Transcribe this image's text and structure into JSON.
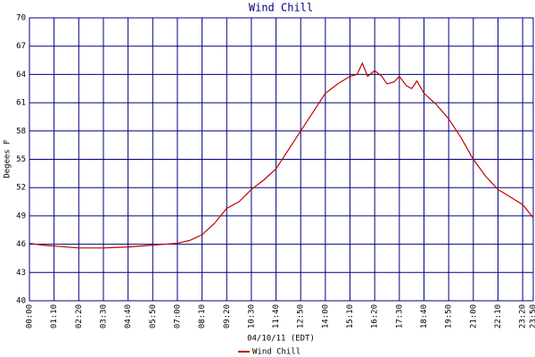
{
  "chart_data": {
    "type": "line",
    "title": "Wind Chill",
    "ylabel": "Degees F",
    "xlabel": "04/10/11 (EDT)",
    "x": [
      0,
      35,
      70,
      140,
      210,
      280,
      350,
      420,
      455,
      490,
      525,
      560,
      595,
      630,
      665,
      700,
      735,
      770,
      805,
      840,
      875,
      910,
      930,
      945,
      960,
      980,
      1000,
      1015,
      1035,
      1050,
      1070,
      1085,
      1100,
      1120,
      1155,
      1190,
      1225,
      1260,
      1295,
      1330,
      1365,
      1400,
      1430
    ],
    "series": [
      {
        "name": "Wind Chill",
        "color": "#c00000",
        "values": [
          46.1,
          45.9,
          45.8,
          45.6,
          45.6,
          45.7,
          45.9,
          46.1,
          46.4,
          47.0,
          48.2,
          49.8,
          50.5,
          51.8,
          52.8,
          54.0,
          56.0,
          58.0,
          60.0,
          62.0,
          63.0,
          63.8,
          64.0,
          65.2,
          63.8,
          64.4,
          63.8,
          63.0,
          63.2,
          63.8,
          62.8,
          62.5,
          63.3,
          62.0,
          60.8,
          59.3,
          57.3,
          55.0,
          53.2,
          51.8,
          51.0,
          50.2,
          48.8
        ]
      }
    ],
    "xlim": [
      0,
      1430
    ],
    "xticks": [
      {
        "value": 0,
        "label": "00:00"
      },
      {
        "value": 70,
        "label": "01:10"
      },
      {
        "value": 140,
        "label": "02:20"
      },
      {
        "value": 210,
        "label": "03:30"
      },
      {
        "value": 280,
        "label": "04:40"
      },
      {
        "value": 350,
        "label": "05:50"
      },
      {
        "value": 420,
        "label": "07:00"
      },
      {
        "value": 490,
        "label": "08:10"
      },
      {
        "value": 560,
        "label": "09:20"
      },
      {
        "value": 630,
        "label": "10:30"
      },
      {
        "value": 700,
        "label": "11:40"
      },
      {
        "value": 770,
        "label": "12:50"
      },
      {
        "value": 840,
        "label": "14:00"
      },
      {
        "value": 910,
        "label": "15:10"
      },
      {
        "value": 980,
        "label": "16:20"
      },
      {
        "value": 1050,
        "label": "17:30"
      },
      {
        "value": 1120,
        "label": "18:40"
      },
      {
        "value": 1190,
        "label": "19:50"
      },
      {
        "value": 1260,
        "label": "21:00"
      },
      {
        "value": 1330,
        "label": "22:10"
      },
      {
        "value": 1400,
        "label": "23:20"
      },
      {
        "value": 1430,
        "label": "23:50"
      }
    ],
    "ylim": [
      40,
      70
    ],
    "yticks": [
      40,
      43,
      46,
      49,
      52,
      55,
      58,
      61,
      64,
      67,
      70
    ],
    "grid": true,
    "grid_color": "#000080"
  }
}
